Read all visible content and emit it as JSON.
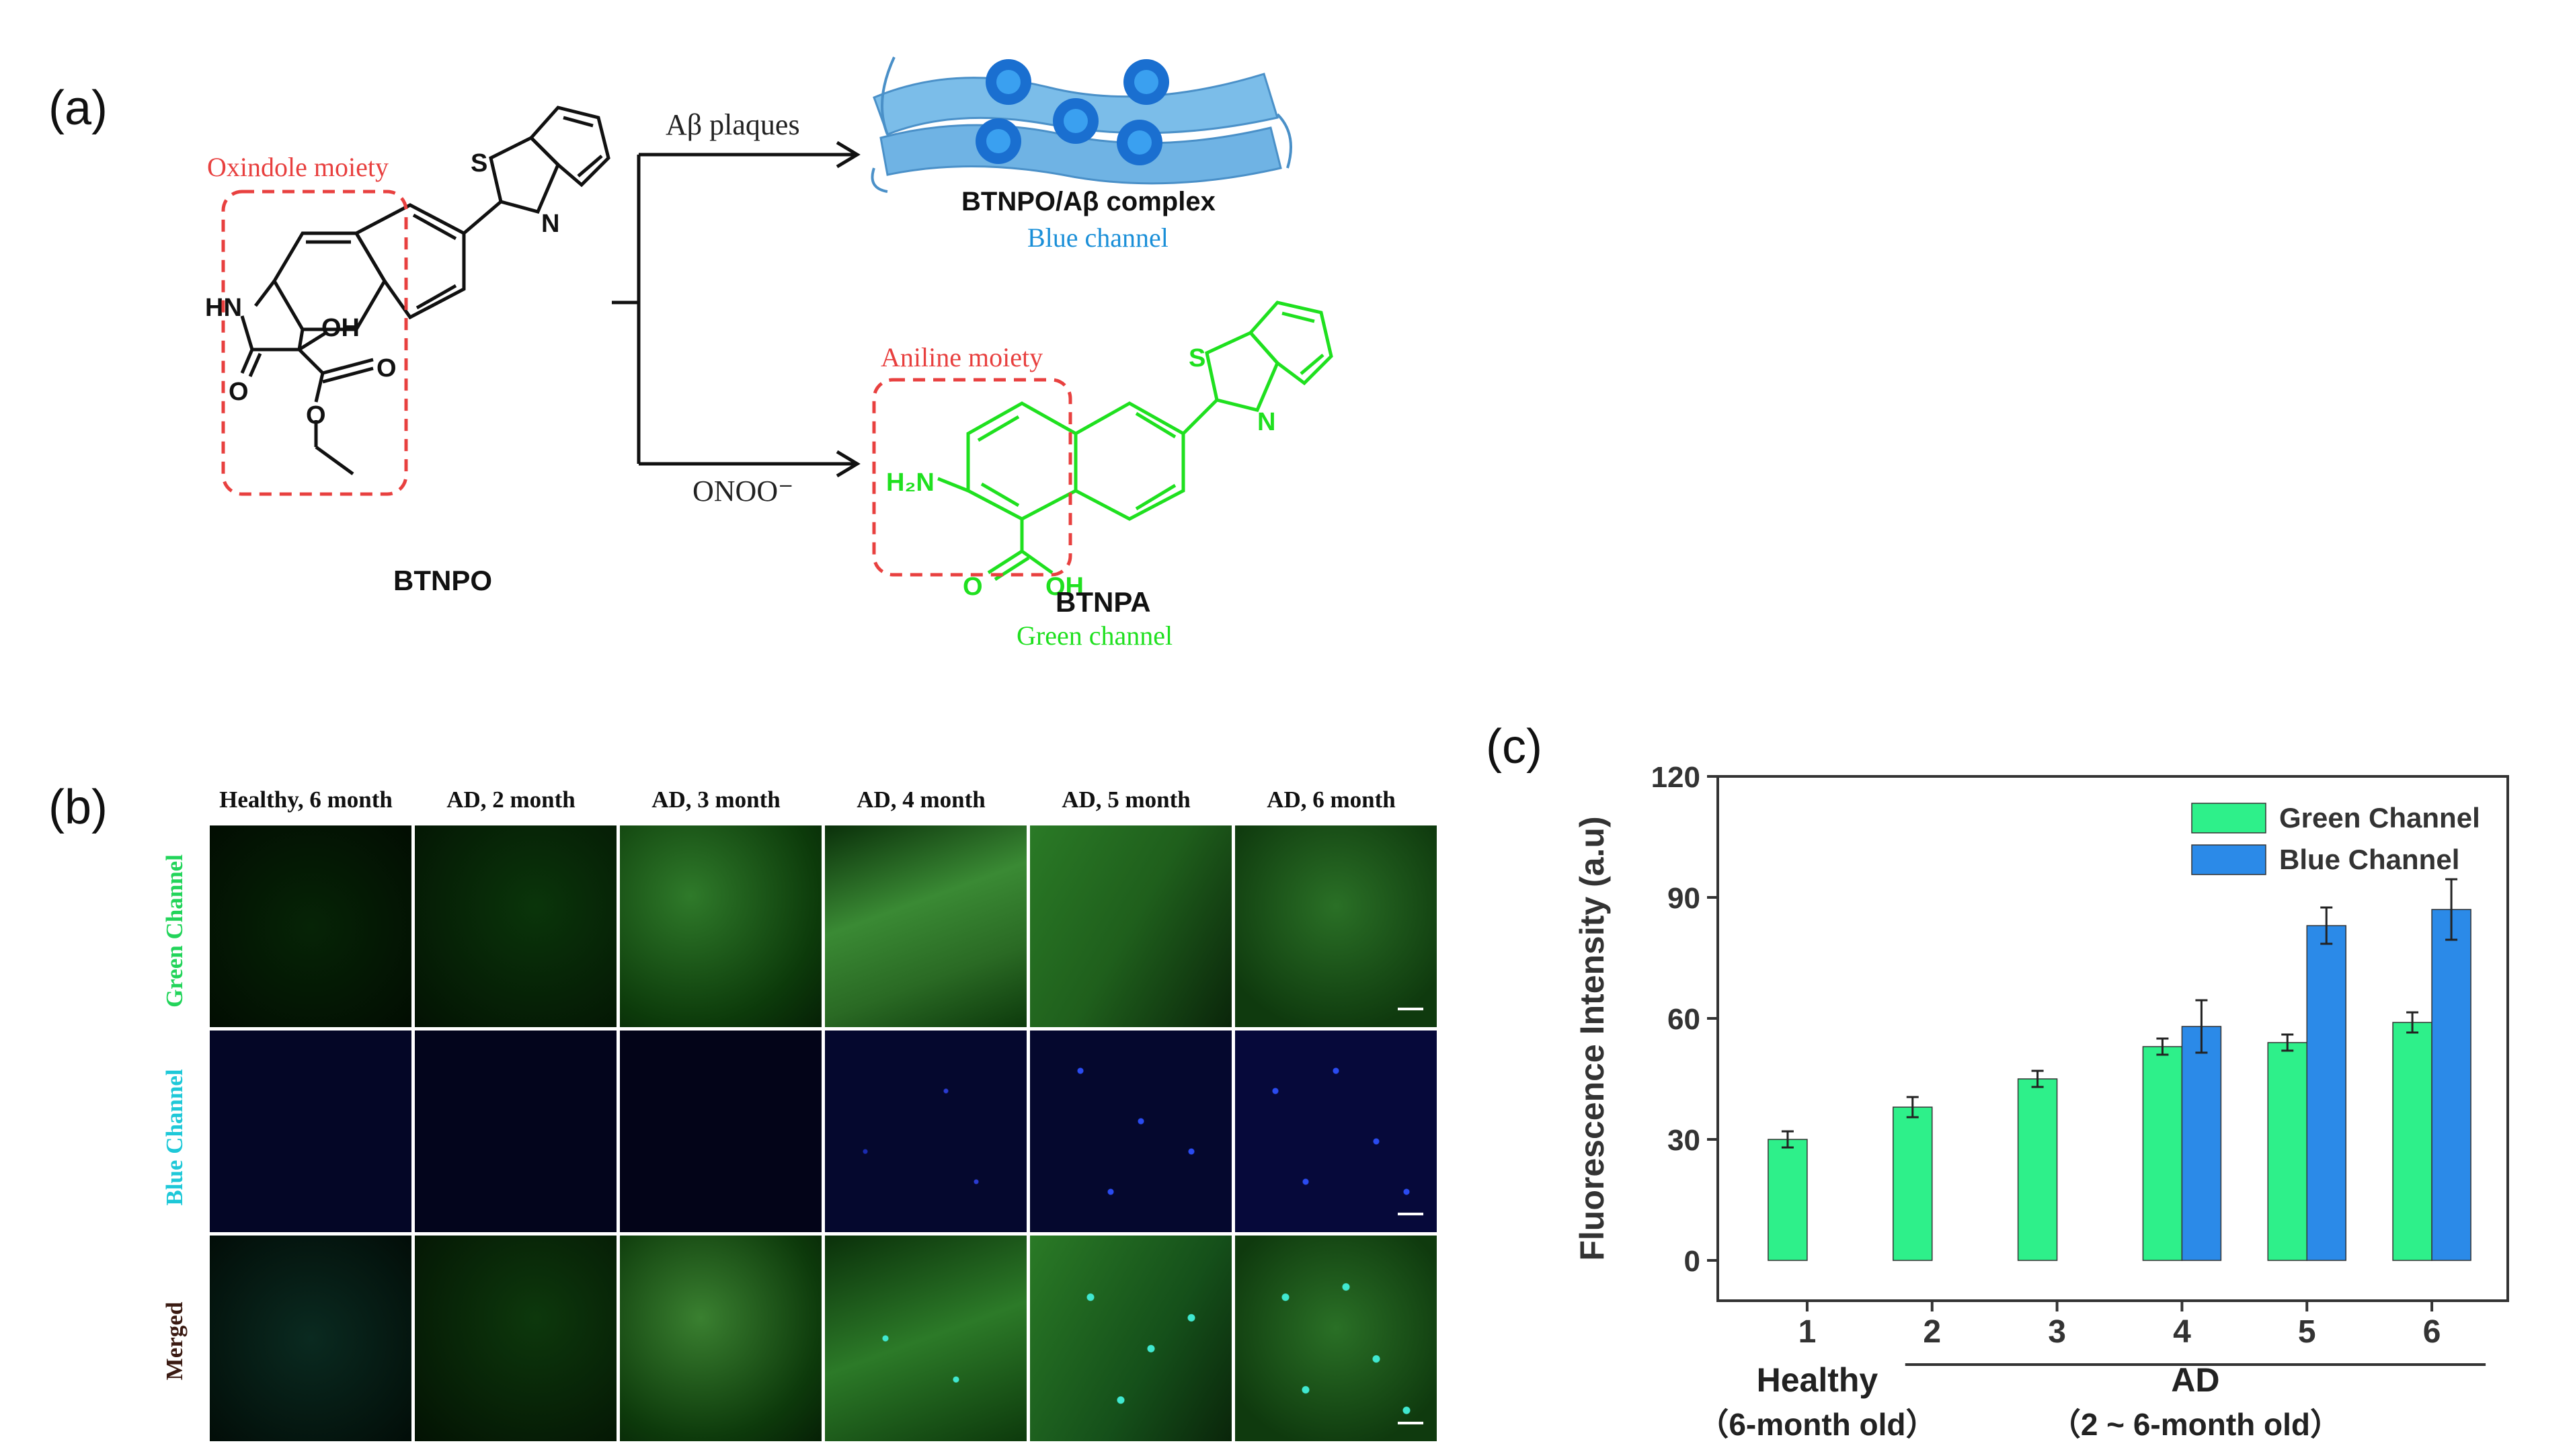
{
  "panel_a": {
    "label": "(a)",
    "reactant_name": "BTNPO",
    "reactant_box_label": "Oxindole moiety",
    "arrow_top_label": "Aβ plaques",
    "arrow_bottom_label": "ONOO⁻",
    "complex_name": "BTNPO/Aβ complex",
    "complex_channel": "Blue channel",
    "product_box_label": "Aniline moiety",
    "product_name": "BTNPA",
    "product_channel": "Green channel",
    "atoms": {
      "s": "S",
      "n": "N",
      "hn": "HN",
      "oh": "OH",
      "o": "O",
      "h2n": "H₂N"
    },
    "colors": {
      "red_dashed": "#e8403f",
      "green": "#1fe01f",
      "blue_text": "#1a8fd8",
      "fibril": "#7bbde9",
      "fibril_core": "#1a6fd0"
    }
  },
  "panel_b": {
    "label": "(b)",
    "columns": [
      "Healthy, 6 month",
      "AD, 2 month",
      "AD, 3 month",
      "AD, 4 month",
      "AD, 5 month",
      "AD, 6 month"
    ],
    "rows": [
      {
        "label": "Green Channel",
        "color": "#22d45a"
      },
      {
        "label": "Blue Channel",
        "color": "#1ec8d8"
      },
      {
        "label": "Merged",
        "color": "#3a1a12"
      }
    ]
  },
  "panel_c": {
    "label": "(c)",
    "chart_data": {
      "type": "bar",
      "categories": [
        "1",
        "2",
        "3",
        "4",
        "5",
        "6"
      ],
      "series": [
        {
          "name": "Green Channel",
          "color": "#2ef08a",
          "values": [
            30,
            38,
            45,
            53,
            54,
            59
          ],
          "errors": [
            2,
            2.5,
            2,
            2,
            2,
            2.5
          ]
        },
        {
          "name": "Blue  Channel",
          "color": "#2b8ae8",
          "values": [
            0,
            0,
            0,
            58,
            83,
            87
          ],
          "errors": [
            0,
            0,
            0,
            6.5,
            4.5,
            7.5
          ]
        }
      ],
      "ylabel": "Fluorescence Intensity (a.u)",
      "ylim": [
        -10,
        120
      ],
      "yticks": [
        0,
        30,
        60,
        90,
        120
      ],
      "group_labels": [
        {
          "name": "Healthy",
          "sub": "（6-month old）"
        },
        {
          "name": "AD",
          "sub": "（2 ~ 6-month old）"
        }
      ],
      "legend_position": "top-right"
    }
  }
}
